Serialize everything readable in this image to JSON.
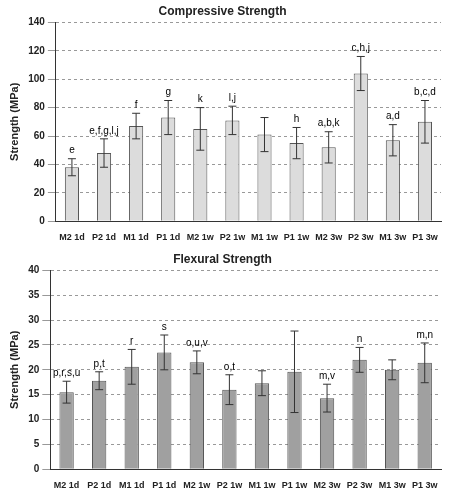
{
  "chart_data": [
    {
      "type": "bar",
      "title": "Compressive Strength",
      "y_label": "Strength (MPa)",
      "categories": [
        "M2 1d",
        "P2 1d",
        "M1 1d",
        "P1 1d",
        "M2 1w",
        "P2 1w",
        "M1 1w",
        "P1 1w",
        "M2 3w",
        "P2 3w",
        "M1 3w",
        "P1 3w"
      ],
      "values": [
        38,
        48,
        67,
        73,
        65,
        71,
        61,
        55,
        52,
        104,
        57,
        70
      ],
      "errors": [
        6,
        10,
        9,
        12,
        15,
        10,
        12,
        11,
        11,
        12,
        11,
        15
      ],
      "annotations": [
        "e",
        "e,f,g,l,j",
        "f",
        "g",
        "k",
        "l,j",
        null,
        "h",
        "a,b,k",
        "c,h,j",
        "a,d",
        "b,c,d"
      ],
      "color": "#dcdcdc",
      "ylim": [
        0,
        140
      ],
      "yticks": [
        0,
        20,
        40,
        60,
        80,
        100,
        120,
        140
      ],
      "grid": true
    },
    {
      "type": "bar",
      "title": "Flexural Strength",
      "y_label": "Strength (MPa)",
      "categories": [
        "M2 1d",
        "P2 1d",
        "M1 1d",
        "P1 1d",
        "M2 1w",
        "P2 1w",
        "M1 1w",
        "P1 1w",
        "M2 3w",
        "P2 3w",
        "M1 3w",
        "P1 3w"
      ],
      "values": [
        15.5,
        17.8,
        20.6,
        23.5,
        21.5,
        16,
        17.3,
        19.6,
        14.3,
        22,
        20,
        21.4
      ],
      "errors": [
        2.2,
        1.8,
        3.5,
        3.5,
        2.3,
        3,
        2.5,
        8.2,
        2.8,
        2.5,
        2,
        4
      ],
      "annotations": [
        "p,r,s,u",
        "p,t",
        "r",
        "s",
        "o,u,v",
        "o,t",
        null,
        null,
        "m,v",
        "n",
        null,
        "m,n"
      ],
      "color": "#a0a0a0",
      "ylim": [
        0,
        40
      ],
      "yticks": [
        0,
        5,
        10,
        15,
        20,
        25,
        30,
        35,
        40
      ],
      "grid": true
    }
  ]
}
